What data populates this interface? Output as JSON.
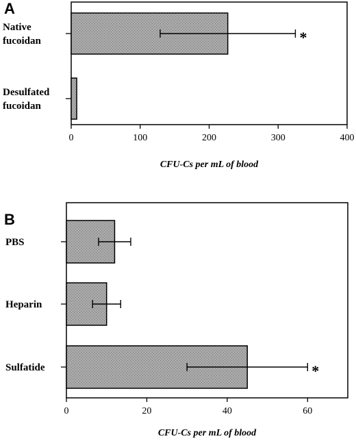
{
  "chart_data": [
    {
      "type": "bar",
      "orientation": "horizontal",
      "panel_label": "A",
      "categories": [
        [
          "Native",
          "fucoidan"
        ],
        [
          "Desulfated",
          "fucoidan"
        ]
      ],
      "values": [
        227,
        8
      ],
      "errors": [
        98,
        null
      ],
      "significance": [
        "*",
        ""
      ],
      "xlabel": "CFU-Cs per mL of blood",
      "xlim": [
        0,
        400
      ],
      "xticks": [
        0,
        100,
        200,
        300,
        400
      ],
      "grid": false
    },
    {
      "type": "bar",
      "orientation": "horizontal",
      "panel_label": "B",
      "categories": [
        [
          "PBS"
        ],
        [
          "Heparin"
        ],
        [
          "Sulfatide"
        ]
      ],
      "values": [
        12,
        10,
        45
      ],
      "errors": [
        4,
        3.5,
        15
      ],
      "significance": [
        "",
        "",
        "*"
      ],
      "xlabel": "CFU-Cs per mL of blood",
      "xlim": [
        0,
        70
      ],
      "xticks": [
        0,
        20,
        40,
        60
      ],
      "grid": false
    }
  ],
  "colors": {
    "bar_fill": "#a6a6a6",
    "bar_stroke": "#000000",
    "axis": "#000000"
  }
}
